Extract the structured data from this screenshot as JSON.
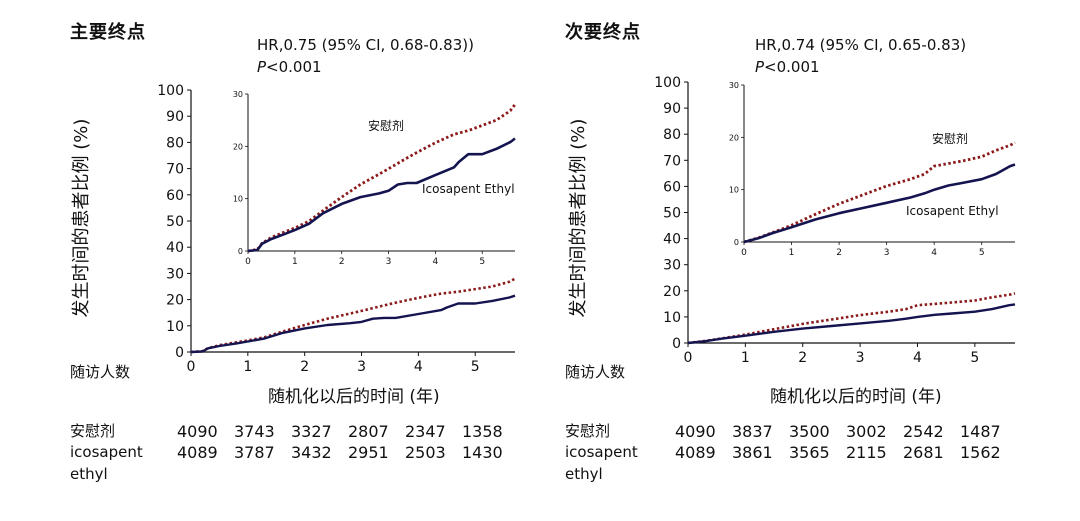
{
  "chart_data": [
    {
      "type": "line",
      "title": "主要终点",
      "hr_text": "HR,0.75 (95% CI, 0.68-0.83))",
      "p_symbol": "P",
      "p_value": "<0.001",
      "ylabel": "发生时间的患者比例 (%)",
      "xlabel": "随机化以后的时间 (年)",
      "ylim": [
        0,
        100
      ],
      "xlim": [
        0,
        5.7
      ],
      "yticks": [
        0,
        10,
        20,
        30,
        40,
        50,
        60,
        70,
        80,
        90,
        100
      ],
      "xticks": [
        0,
        1,
        2,
        3,
        4,
        5
      ],
      "series": [
        {
          "name": "安慰剂",
          "color": "#8b1a1a",
          "style": "dotted",
          "x": [
            0,
            0.2,
            0.3,
            0.5,
            0.8,
            1.0,
            1.3,
            1.6,
            2.0,
            2.4,
            2.8,
            3.0,
            3.3,
            3.6,
            4.0,
            4.4,
            4.7,
            5.0,
            5.3,
            5.6,
            5.7
          ],
          "y": [
            0,
            0.3,
            1.5,
            2.6,
            3.7,
            4.4,
            5.7,
            7.7,
            10.3,
            12.7,
            14.7,
            15.7,
            17.3,
            18.8,
            20.7,
            22.3,
            23.0,
            24.0,
            25.0,
            26.8,
            28.0
          ]
        },
        {
          "name": "Icosapent Ethyl",
          "color": "#141450",
          "style": "solid",
          "x": [
            0,
            0.2,
            0.3,
            0.5,
            0.8,
            1.0,
            1.3,
            1.6,
            2.0,
            2.4,
            2.8,
            3.0,
            3.2,
            3.4,
            3.6,
            4.0,
            4.4,
            4.5,
            4.7,
            5.0,
            5.3,
            5.6,
            5.7
          ],
          "y": [
            0,
            0.2,
            1.4,
            2.3,
            3.3,
            4.0,
            5.2,
            7.2,
            9.0,
            10.3,
            11.0,
            11.5,
            12.7,
            13.0,
            13.0,
            14.5,
            16.0,
            17.0,
            18.5,
            18.5,
            19.5,
            20.8,
            21.5
          ]
        }
      ],
      "inset": {
        "ylim": [
          0,
          30
        ],
        "xlim": [
          0,
          5.7
        ],
        "yticks": [
          0,
          10,
          20,
          30
        ],
        "xticks": [
          0,
          1,
          2,
          3,
          4,
          5
        ]
      },
      "risk_table": {
        "title": "随访人数",
        "rows": [
          {
            "name": "安慰剂",
            "values": [
              "4090",
              "3743",
              "3327",
              "2807",
              "2347",
              "1358"
            ]
          },
          {
            "name": "icosapent ethyl",
            "values": [
              "4089",
              "3787",
              "3432",
              "2951",
              "2503",
              "1430"
            ]
          }
        ]
      }
    },
    {
      "type": "line",
      "title": "次要终点",
      "hr_text": "HR,0.74 (95% CI, 0.65-0.83)",
      "p_symbol": "P",
      "p_value": "<0.001",
      "ylabel": "发生时间的患者比例 (%)",
      "xlabel": "随机化以后的时间 (年)",
      "ylim": [
        0,
        100
      ],
      "xlim": [
        0,
        5.7
      ],
      "yticks": [
        0,
        10,
        20,
        30,
        40,
        50,
        60,
        70,
        80,
        90,
        100
      ],
      "xticks": [
        0,
        1,
        2,
        3,
        4,
        5
      ],
      "series": [
        {
          "name": "安慰剂",
          "color": "#8b1a1a",
          "style": "dotted",
          "x": [
            0,
            0.3,
            0.6,
            1.0,
            1.5,
            2.0,
            2.5,
            3.0,
            3.5,
            3.8,
            4.0,
            4.3,
            4.6,
            5.0,
            5.3,
            5.6,
            5.7
          ],
          "y": [
            0,
            0.8,
            1.8,
            3.2,
            5.3,
            7.3,
            9.0,
            10.7,
            12.0,
            13.0,
            14.5,
            15.0,
            15.5,
            16.3,
            17.5,
            18.5,
            19.0
          ]
        },
        {
          "name": "Icosapent Ethyl",
          "color": "#141450",
          "style": "solid",
          "x": [
            0,
            0.3,
            0.6,
            1.0,
            1.5,
            2.0,
            2.5,
            3.0,
            3.5,
            3.8,
            4.0,
            4.3,
            4.6,
            5.0,
            5.3,
            5.6,
            5.7
          ],
          "y": [
            0,
            0.7,
            1.7,
            2.8,
            4.3,
            5.5,
            6.5,
            7.5,
            8.5,
            9.3,
            10.0,
            10.8,
            11.3,
            12.0,
            13.0,
            14.5,
            14.8
          ]
        }
      ],
      "inset": {
        "ylim": [
          0,
          30
        ],
        "xlim": [
          0,
          5.7
        ],
        "yticks": [
          0,
          10,
          20,
          30
        ],
        "xticks": [
          0,
          1,
          2,
          3,
          4,
          5
        ]
      },
      "risk_table": {
        "title": "随访人数",
        "rows": [
          {
            "name": "安慰剂",
            "values": [
              "4090",
              "3837",
              "3500",
              "3002",
              "2542",
              "1487"
            ]
          },
          {
            "name": "icosapent ethyl",
            "values": [
              "4089",
              "3861",
              "3565",
              "2115",
              "2681",
              "1562"
            ]
          }
        ]
      }
    }
  ]
}
